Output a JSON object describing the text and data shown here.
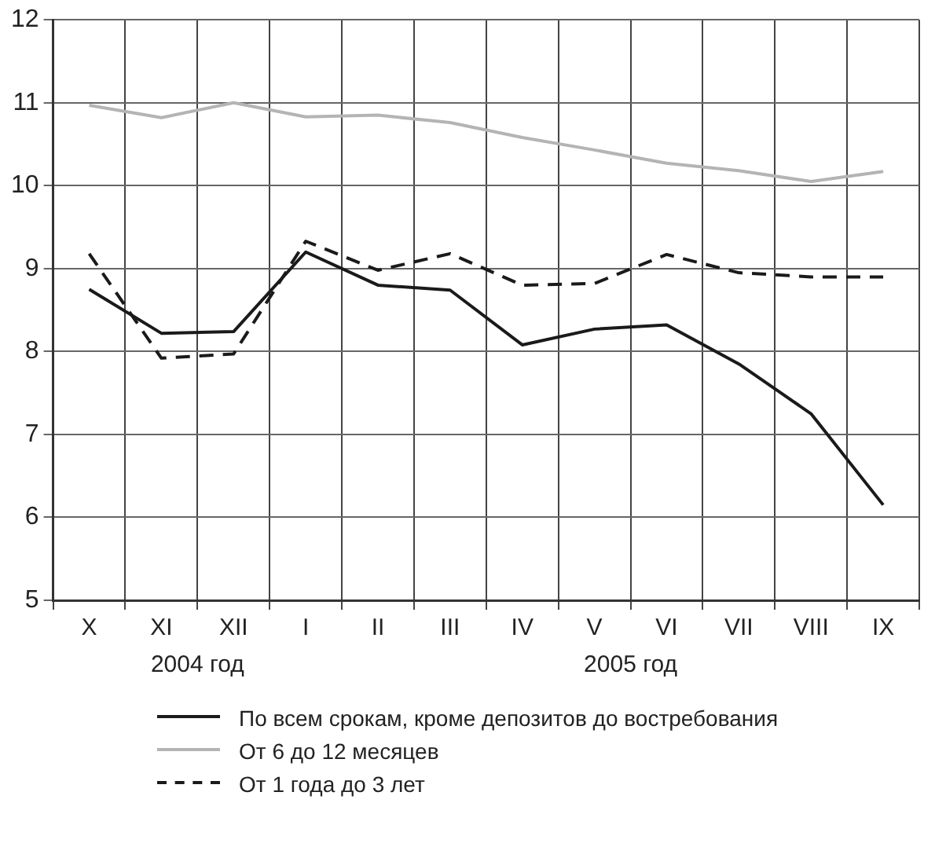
{
  "chart_data": {
    "type": "line",
    "categories": [
      "X",
      "XI",
      "XII",
      "I",
      "II",
      "III",
      "IV",
      "V",
      "VI",
      "VII",
      "VIII",
      "IX"
    ],
    "series": [
      {
        "name": "По всем срокам, кроме депозитов до востребования",
        "color": "#1a1a1a",
        "line_style": "solid",
        "values": [
          8.75,
          8.22,
          8.24,
          9.2,
          8.8,
          8.74,
          8.08,
          8.27,
          8.32,
          7.85,
          7.25,
          6.15
        ]
      },
      {
        "name": "От 6 до 12 месяцев",
        "color": "#b4b4b4",
        "line_style": "solid",
        "values": [
          10.97,
          10.82,
          11.0,
          10.83,
          10.85,
          10.76,
          10.58,
          10.43,
          10.27,
          10.18,
          10.05,
          10.17
        ]
      },
      {
        "name": "От 1 года до 3 лет",
        "color": "#1a1a1a",
        "line_style": "dashed",
        "values": [
          9.18,
          7.92,
          7.97,
          9.33,
          8.98,
          9.18,
          8.8,
          8.82,
          9.17,
          8.95,
          8.9,
          8.9
        ]
      }
    ],
    "ylim": [
      5,
      12
    ],
    "yticks": [
      5,
      6,
      7,
      8,
      9,
      10,
      11,
      12
    ],
    "grid": true,
    "legend": "bottom",
    "marker": "none",
    "annotations": [
      "2004 год",
      "2005 год"
    ]
  }
}
